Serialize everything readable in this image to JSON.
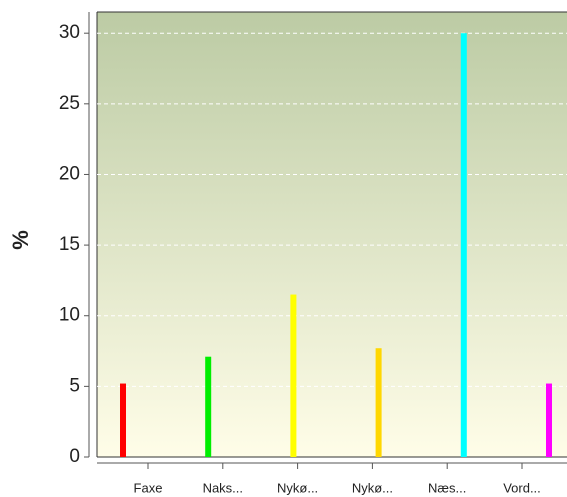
{
  "chart_data": {
    "type": "bar",
    "y_label": "%",
    "categories": [
      "Faxe",
      "Naks...",
      "Nykø...",
      "Nykø...",
      "Næs...",
      "Vord..."
    ],
    "values": [
      5.2,
      7.1,
      11.5,
      7.7,
      30,
      5.2
    ],
    "colors": [
      "#ff0000",
      "#00ee00",
      "#ffff00",
      "#ffd700",
      "#00ffff",
      "#ff00ff"
    ],
    "ylim": [
      0,
      31.5
    ],
    "yticks": [
      0,
      5,
      10,
      15,
      20,
      25,
      30
    ],
    "grid": true
  }
}
